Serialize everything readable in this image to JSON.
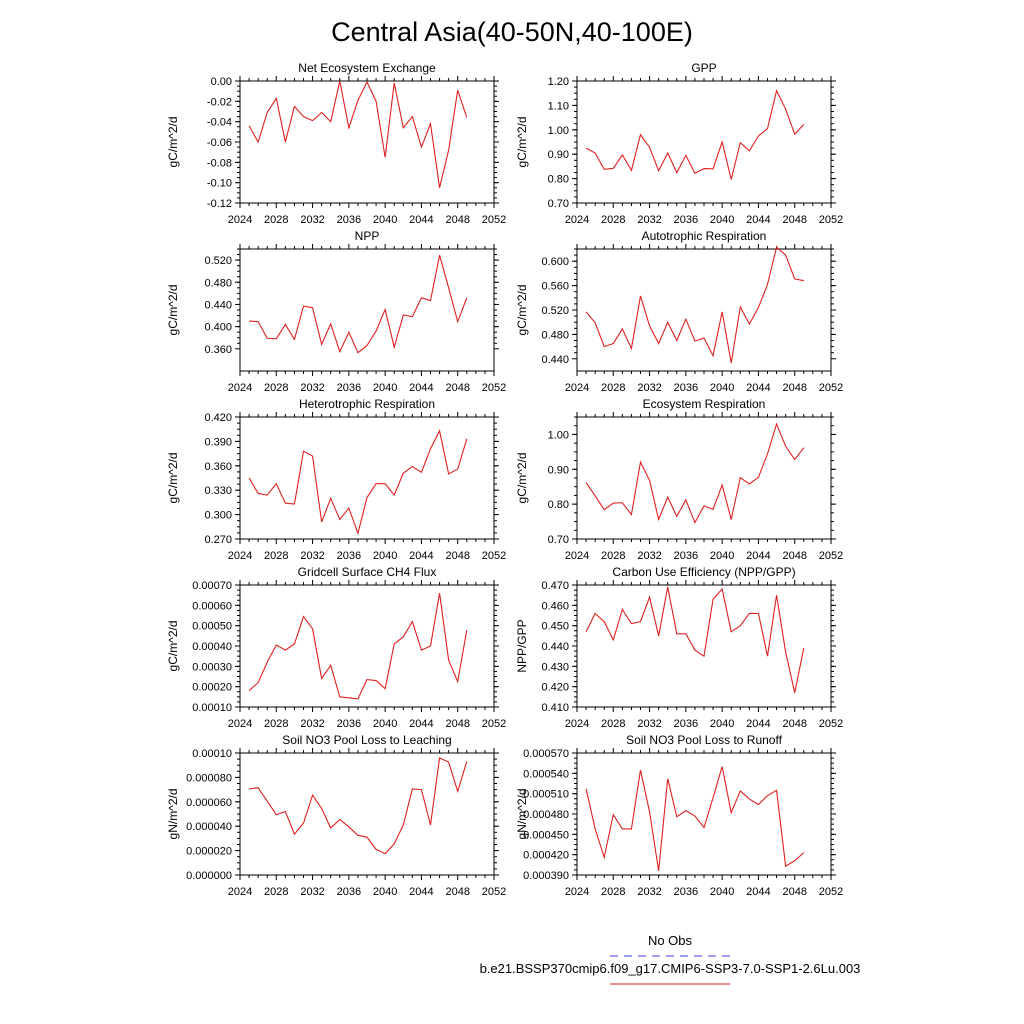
{
  "title": "Central Asia(40-50N,40-100E)",
  "legend": {
    "obs_label": "No Obs",
    "run_label": "b.e21.BSSP370cmip6.f09_g17.CMIP6-SSP3-7.0-SSP1-2.6Lu.003",
    "obs_color": "#3b3bd0",
    "run_color": "#e02020"
  },
  "chart_data": [
    {
      "type": "line",
      "title": "Net Ecosystem Exchange",
      "xlabel": "",
      "ylabel": "gC/m^2/d",
      "xlim": [
        2024,
        2052
      ],
      "xticks": [
        2024,
        2028,
        2032,
        2036,
        2040,
        2044,
        2048,
        2052
      ],
      "ylim": [
        -0.12,
        0.0
      ],
      "yticks": [
        0.0,
        -0.02,
        -0.04,
        -0.06,
        -0.08,
        -0.1,
        -0.12
      ],
      "yticklabels": [
        "0.00",
        "-0.02",
        "-0.04",
        "-0.06",
        "-0.08",
        "-0.10",
        "-0.12"
      ],
      "series": [
        {
          "x": [
            2025,
            2026,
            2027,
            2028,
            2029,
            2030,
            2031,
            2032,
            2033,
            2034,
            2035,
            2036,
            2037,
            2038,
            2039,
            2040,
            2041,
            2042,
            2043,
            2044,
            2045,
            2046,
            2047,
            2048,
            2049
          ],
          "y": [
            -0.044,
            -0.06,
            -0.031,
            -0.017,
            -0.06,
            -0.025,
            -0.035,
            -0.039,
            -0.031,
            -0.04,
            0.0,
            -0.046,
            -0.019,
            -0.001,
            -0.02,
            -0.075,
            -0.002,
            -0.046,
            -0.035,
            -0.065,
            -0.042,
            -0.105,
            -0.068,
            -0.009,
            -0.036
          ]
        }
      ]
    },
    {
      "type": "line",
      "title": "GPP",
      "xlabel": "",
      "ylabel": "gC/m^2/d",
      "xlim": [
        2024,
        2052
      ],
      "xticks": [
        2024,
        2028,
        2032,
        2036,
        2040,
        2044,
        2048,
        2052
      ],
      "ylim": [
        0.7,
        1.2
      ],
      "yticks": [
        1.2,
        1.1,
        1.0,
        0.9,
        0.8,
        0.7
      ],
      "yticklabels": [
        "1.20",
        "1.10",
        "1.00",
        "0.90",
        "0.80",
        "0.70"
      ],
      "series": [
        {
          "x": [
            2025,
            2026,
            2027,
            2028,
            2029,
            2030,
            2031,
            2032,
            2033,
            2034,
            2035,
            2036,
            2037,
            2038,
            2039,
            2040,
            2041,
            2042,
            2043,
            2044,
            2045,
            2046,
            2047,
            2048,
            2049
          ],
          "y": [
            0.925,
            0.905,
            0.838,
            0.842,
            0.897,
            0.834,
            0.98,
            0.928,
            0.832,
            0.905,
            0.824,
            0.895,
            0.822,
            0.841,
            0.84,
            0.95,
            0.797,
            0.947,
            0.914,
            0.974,
            1.005,
            1.16,
            1.085,
            0.982,
            1.022
          ]
        }
      ]
    },
    {
      "type": "line",
      "title": "NPP",
      "xlabel": "",
      "ylabel": "gC/m^2/d",
      "xlim": [
        2024,
        2052
      ],
      "xticks": [
        2024,
        2028,
        2032,
        2036,
        2040,
        2044,
        2048,
        2052
      ],
      "ylim": [
        0.32,
        0.54
      ],
      "yticks": [
        0.52,
        0.48,
        0.44,
        0.4,
        0.36
      ],
      "yticklabels": [
        "0.520",
        "0.480",
        "0.440",
        "0.400",
        "0.360"
      ],
      "series": [
        {
          "x": [
            2025,
            2026,
            2027,
            2028,
            2029,
            2030,
            2031,
            2032,
            2033,
            2034,
            2035,
            2036,
            2037,
            2038,
            2039,
            2040,
            2041,
            2042,
            2043,
            2044,
            2045,
            2046,
            2047,
            2048,
            2049
          ],
          "y": [
            0.41,
            0.409,
            0.379,
            0.378,
            0.404,
            0.377,
            0.437,
            0.434,
            0.368,
            0.405,
            0.355,
            0.39,
            0.353,
            0.366,
            0.392,
            0.431,
            0.363,
            0.421,
            0.418,
            0.452,
            0.447,
            0.529,
            0.47,
            0.409,
            0.452
          ]
        }
      ]
    },
    {
      "type": "line",
      "title": "Autotrophic Respiration",
      "xlabel": "",
      "ylabel": "gC/m^2/d",
      "xlim": [
        2024,
        2052
      ],
      "xticks": [
        2024,
        2028,
        2032,
        2036,
        2040,
        2044,
        2048,
        2052
      ],
      "ylim": [
        0.42,
        0.62
      ],
      "yticks": [
        0.6,
        0.56,
        0.52,
        0.48,
        0.44
      ],
      "yticklabels": [
        "0.600",
        "0.560",
        "0.520",
        "0.480",
        "0.440"
      ],
      "series": [
        {
          "x": [
            2025,
            2026,
            2027,
            2028,
            2029,
            2030,
            2031,
            2032,
            2033,
            2034,
            2035,
            2036,
            2037,
            2038,
            2039,
            2040,
            2041,
            2042,
            2043,
            2044,
            2045,
            2046,
            2047,
            2048,
            2049
          ],
          "y": [
            0.517,
            0.499,
            0.46,
            0.465,
            0.489,
            0.457,
            0.543,
            0.494,
            0.465,
            0.5,
            0.47,
            0.505,
            0.469,
            0.474,
            0.445,
            0.517,
            0.433,
            0.525,
            0.497,
            0.524,
            0.562,
            0.623,
            0.61,
            0.571,
            0.568
          ]
        }
      ]
    },
    {
      "type": "line",
      "title": "Heterotrophic Respiration",
      "xlabel": "",
      "ylabel": "gC/m^2/d",
      "xlim": [
        2024,
        2052
      ],
      "xticks": [
        2024,
        2028,
        2032,
        2036,
        2040,
        2044,
        2048,
        2052
      ],
      "ylim": [
        0.27,
        0.42
      ],
      "yticks": [
        0.42,
        0.39,
        0.36,
        0.33,
        0.3,
        0.27
      ],
      "yticklabels": [
        "0.420",
        "0.390",
        "0.360",
        "0.330",
        "0.300",
        "0.270"
      ],
      "series": [
        {
          "x": [
            2025,
            2026,
            2027,
            2028,
            2029,
            2030,
            2031,
            2032,
            2033,
            2034,
            2035,
            2036,
            2037,
            2038,
            2039,
            2040,
            2041,
            2042,
            2043,
            2044,
            2045,
            2046,
            2047,
            2048,
            2049
          ],
          "y": [
            0.345,
            0.326,
            0.324,
            0.338,
            0.314,
            0.313,
            0.378,
            0.372,
            0.291,
            0.32,
            0.294,
            0.308,
            0.277,
            0.321,
            0.338,
            0.338,
            0.324,
            0.351,
            0.359,
            0.352,
            0.381,
            0.403,
            0.35,
            0.356,
            0.393
          ]
        }
      ]
    },
    {
      "type": "line",
      "title": "Ecosystem Respiration",
      "xlabel": "",
      "ylabel": "gC/m^2/d",
      "xlim": [
        2024,
        2052
      ],
      "xticks": [
        2024,
        2028,
        2032,
        2036,
        2040,
        2044,
        2048,
        2052
      ],
      "ylim": [
        0.7,
        1.05
      ],
      "yticks": [
        1.0,
        0.9,
        0.8,
        0.7
      ],
      "yticklabels": [
        "1.00",
        "0.90",
        "0.80",
        "0.70"
      ],
      "series": [
        {
          "x": [
            2025,
            2026,
            2027,
            2028,
            2029,
            2030,
            2031,
            2032,
            2033,
            2034,
            2035,
            2036,
            2037,
            2038,
            2039,
            2040,
            2041,
            2042,
            2043,
            2044,
            2045,
            2046,
            2047,
            2048,
            2049
          ],
          "y": [
            0.862,
            0.824,
            0.784,
            0.803,
            0.804,
            0.77,
            0.921,
            0.868,
            0.756,
            0.82,
            0.765,
            0.812,
            0.747,
            0.795,
            0.785,
            0.855,
            0.756,
            0.876,
            0.858,
            0.877,
            0.944,
            1.03,
            0.966,
            0.928,
            0.962
          ]
        }
      ]
    },
    {
      "type": "line",
      "title": "Gridcell Surface CH4 Flux",
      "xlabel": "",
      "ylabel": "gC/m^2/d",
      "xlim": [
        2024,
        2052
      ],
      "xticks": [
        2024,
        2028,
        2032,
        2036,
        2040,
        2044,
        2048,
        2052
      ],
      "ylim": [
        0.0001,
        0.0007
      ],
      "yticks": [
        0.0007,
        0.0006,
        0.0005,
        0.0004,
        0.0003,
        0.0002,
        0.0001
      ],
      "yticklabels": [
        "0.00070",
        "0.00060",
        "0.00050",
        "0.00040",
        "0.00030",
        "0.00020",
        "0.00010"
      ],
      "series": [
        {
          "x": [
            2025,
            2026,
            2027,
            2028,
            2029,
            2030,
            2031,
            2032,
            2033,
            2034,
            2035,
            2036,
            2037,
            2038,
            2039,
            2040,
            2041,
            2042,
            2043,
            2044,
            2045,
            2046,
            2047,
            2048,
            2049
          ],
          "y": [
            0.00018,
            0.00022,
            0.00032,
            0.000405,
            0.00038,
            0.00041,
            0.000545,
            0.000485,
            0.00024,
            0.000305,
            0.00015,
            0.000145,
            0.00014,
            0.000235,
            0.00023,
            0.00019,
            0.00041,
            0.000445,
            0.00052,
            0.00038,
            0.0004,
            0.00066,
            0.00033,
            0.000225,
            0.000478
          ]
        }
      ]
    },
    {
      "type": "line",
      "title": "Carbon Use Efficiency (NPP/GPP)",
      "xlabel": "",
      "ylabel": "NPP/GPP",
      "xlim": [
        2024,
        2052
      ],
      "xticks": [
        2024,
        2028,
        2032,
        2036,
        2040,
        2044,
        2048,
        2052
      ],
      "ylim": [
        0.41,
        0.47
      ],
      "yticks": [
        0.47,
        0.46,
        0.45,
        0.44,
        0.43,
        0.42,
        0.41
      ],
      "yticklabels": [
        "0.470",
        "0.460",
        "0.450",
        "0.440",
        "0.430",
        "0.420",
        "0.410"
      ],
      "series": [
        {
          "x": [
            2025,
            2026,
            2027,
            2028,
            2029,
            2030,
            2031,
            2032,
            2033,
            2034,
            2035,
            2036,
            2037,
            2038,
            2039,
            2040,
            2041,
            2042,
            2043,
            2044,
            2045,
            2046,
            2047,
            2048,
            2049
          ],
          "y": [
            0.447,
            0.456,
            0.452,
            0.443,
            0.458,
            0.451,
            0.452,
            0.464,
            0.445,
            0.469,
            0.446,
            0.446,
            0.438,
            0.435,
            0.463,
            0.468,
            0.447,
            0.45,
            0.456,
            0.456,
            0.435,
            0.465,
            0.437,
            0.417,
            0.439
          ]
        }
      ]
    },
    {
      "type": "line",
      "title": "Soil NO3 Pool Loss to Leaching",
      "xlabel": "",
      "ylabel": "gN/m^2/d",
      "xlim": [
        2024,
        2052
      ],
      "xticks": [
        2024,
        2028,
        2032,
        2036,
        2040,
        2044,
        2048,
        2052
      ],
      "ylim": [
        0.0,
        0.0001
      ],
      "yticks": [
        0.0001,
        8e-05,
        6e-05,
        4e-05,
        2e-05,
        0.0
      ],
      "yticklabels": [
        "0.00010",
        "0.000080",
        "0.000060",
        "0.000040",
        "0.000020",
        "0.000000"
      ],
      "series": [
        {
          "x": [
            2025,
            2026,
            2027,
            2028,
            2029,
            2030,
            2031,
            2032,
            2033,
            2034,
            2035,
            2036,
            2037,
            2038,
            2039,
            2040,
            2041,
            2042,
            2043,
            2044,
            2045,
            2046,
            2047,
            2048,
            2049
          ],
          "y": [
            7.05e-05,
            7.15e-05,
            6.05e-05,
            4.95e-05,
            5.2e-05,
            3.35e-05,
            4.25e-05,
            6.55e-05,
            5.45e-05,
            3.85e-05,
            4.55e-05,
            3.95e-05,
            3.25e-05,
            3.1e-05,
            2.1e-05,
            1.75e-05,
            2.55e-05,
            4.1e-05,
            7.05e-05,
            7e-05,
            4.1e-05,
            9.6e-05,
            9.25e-05,
            6.85e-05,
            9.3e-05
          ]
        }
      ]
    },
    {
      "type": "line",
      "title": "Soil NO3 Pool Loss to Runoff",
      "xlabel": "",
      "ylabel": "gN/m^2/d",
      "xlim": [
        2024,
        2052
      ],
      "xticks": [
        2024,
        2028,
        2032,
        2036,
        2040,
        2044,
        2048,
        2052
      ],
      "ylim": [
        0.00039,
        0.00057
      ],
      "yticks": [
        0.00057,
        0.00054,
        0.00051,
        0.00048,
        0.00045,
        0.00042,
        0.00039
      ],
      "yticklabels": [
        "0.000570",
        "0.000540",
        "0.000510",
        "0.000480",
        "0.000450",
        "0.000420",
        "0.000390"
      ],
      "series": [
        {
          "x": [
            2025,
            2026,
            2027,
            2028,
            2029,
            2030,
            2031,
            2032,
            2033,
            2034,
            2035,
            2036,
            2037,
            2038,
            2039,
            2040,
            2041,
            2042,
            2043,
            2044,
            2045,
            2046,
            2047,
            2048,
            2049
          ],
          "y": [
            0.000517,
            0.000458,
            0.000416,
            0.000479,
            0.000458,
            0.000458,
            0.000545,
            0.000483,
            0.000396,
            0.000532,
            0.000476,
            0.000485,
            0.000477,
            0.00046,
            0.000504,
            0.00055,
            0.000482,
            0.000514,
            0.000502,
            0.000494,
            0.000507,
            0.000515,
            0.000403,
            0.000411,
            0.000423
          ]
        }
      ]
    }
  ]
}
